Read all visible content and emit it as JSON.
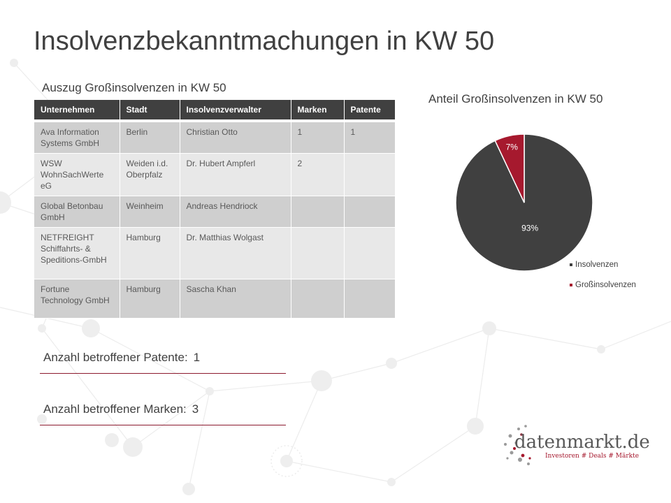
{
  "title": "Insolvenzbekanntmachungen in KW 50",
  "table": {
    "caption": "Auszug Großinsolvenzen in KW 50",
    "columns": [
      "Unternehmen",
      "Stadt",
      "Insolvenzverwalter",
      "Marken",
      "Patente"
    ],
    "rows": [
      [
        "Ava Information Systems GmbH",
        "Berlin",
        "Christian  Otto",
        "1",
        "1"
      ],
      [
        "WSW WohnSachWerte eG",
        "Weiden i.d. Oberpfalz",
        "Dr. Hubert  Ampferl",
        "2",
        ""
      ],
      [
        "Global Betonbau GmbH",
        "Weinheim",
        "Andreas Hendriock",
        "",
        ""
      ],
      [
        "NETFREIGHT Schiffahrts- & Speditions-GmbH",
        "Hamburg",
        "Dr. Matthias  Wolgast",
        "",
        ""
      ],
      [
        "Fortune Technology GmbH",
        "Hamburg",
        "Sascha Khan",
        "",
        ""
      ]
    ]
  },
  "stats": {
    "patents_label": "Anzahl betroffener Patente:",
    "patents_value": "1",
    "marks_label": "Anzahl betroffener Marken:",
    "marks_value": "3"
  },
  "chart_data": {
    "type": "pie",
    "title": "Anteil Großinsolvenzen in KW 50",
    "categories": [
      "Insolvenzen",
      "Großinsolvenzen"
    ],
    "values": [
      93,
      7
    ],
    "labels": [
      "93%",
      "7%"
    ],
    "colors": [
      "#404040",
      "#a6192e"
    ],
    "legend": "bottom-right"
  },
  "logo": {
    "name": "datenmarkt.de",
    "tagline": "Investoren # Deals # Märkte"
  },
  "colors": {
    "accent": "#a6192e",
    "dark": "#404040",
    "row_odd": "#cfcfcf",
    "row_even": "#e8e8e8"
  }
}
